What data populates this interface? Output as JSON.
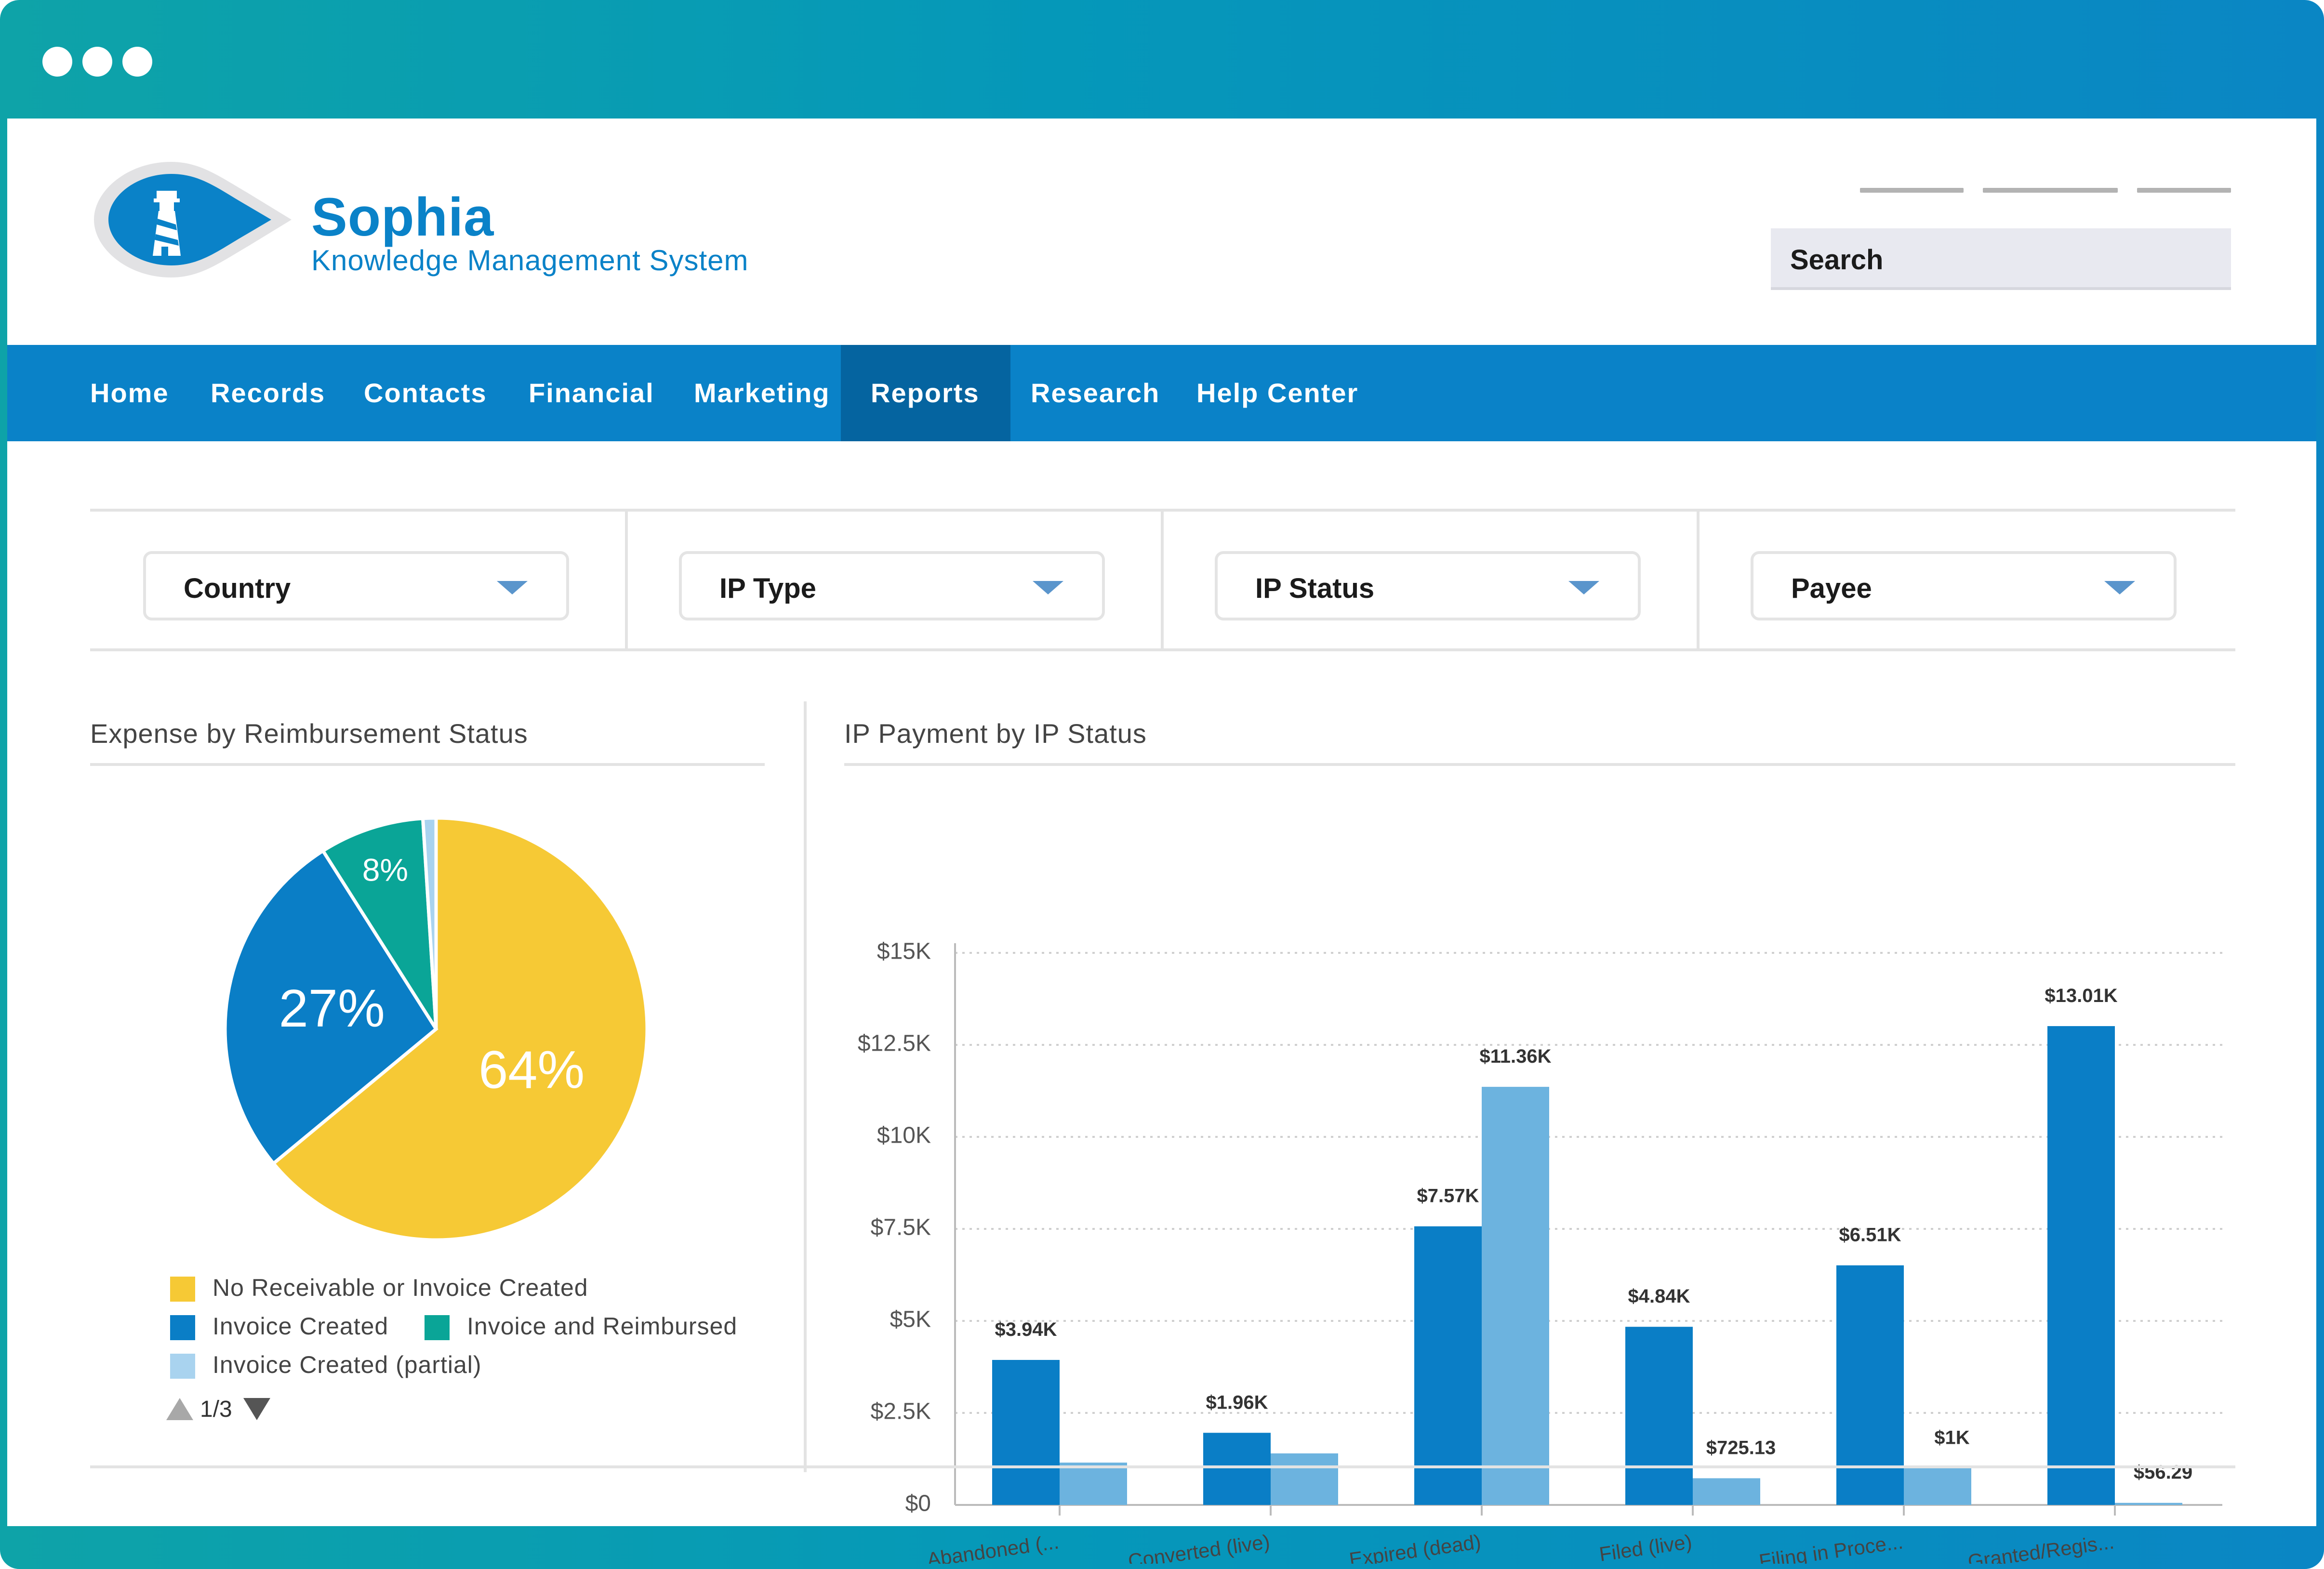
{
  "brand": {
    "title": "Sophia",
    "subtitle": "Knowledge Management System"
  },
  "header": {
    "search_label": "Search"
  },
  "nav": {
    "items": [
      {
        "label": "Home"
      },
      {
        "label": "Records"
      },
      {
        "label": "Contacts"
      },
      {
        "label": "Financial"
      },
      {
        "label": "Marketing"
      },
      {
        "label": "Reports",
        "active": true
      },
      {
        "label": "Research"
      },
      {
        "label": "Help Center"
      }
    ]
  },
  "filters": [
    {
      "label": "Country"
    },
    {
      "label": "IP Type"
    },
    {
      "label": "IP Status"
    },
    {
      "label": "Payee"
    }
  ],
  "colors": {
    "accent": "#0a82c8",
    "nav_active": "#0564a0",
    "yellow": "#f6c935",
    "blue": "#0a7ec6",
    "teal": "#0aa597",
    "light_blue": "#6cb3df",
    "pale_blue": "#a9d3ef"
  },
  "pie_panel": {
    "title": "Expense by Reimbursement Status",
    "legend": [
      {
        "label": "No Receivable or Invoice Created",
        "color": "#f6c935"
      },
      {
        "label": "Invoice Created",
        "color": "#0a7ec6"
      },
      {
        "label": "Invoice and Reimbursed",
        "color": "#0aa597"
      },
      {
        "label": "Invoice Created (partial)",
        "color": "#a9d3ef"
      }
    ],
    "pager": "1/3"
  },
  "bar_panel": {
    "title": "IP Payment by IP Status"
  },
  "chart_data": [
    {
      "type": "pie",
      "title": "Expense by Reimbursement Status",
      "slices": [
        {
          "label": "No Receivable or Invoice Created",
          "value": 64,
          "text": "64%",
          "color": "#f6c935"
        },
        {
          "label": "Invoice Created",
          "value": 27,
          "text": "27%",
          "color": "#0a7ec6"
        },
        {
          "label": "Invoice and Reimbursed",
          "value": 8,
          "text": "8%",
          "color": "#0aa597"
        },
        {
          "label": "Invoice Created (partial)",
          "value": 1,
          "text": "",
          "color": "#a9d3ef"
        }
      ]
    },
    {
      "type": "bar",
      "title": "IP Payment by IP Status",
      "categories": [
        "Abandoned (...",
        "Converted (live)",
        "Expired (dead)",
        "Filed (live)",
        "Filing in Proce...",
        "Granted/Regis..."
      ],
      "series": [
        {
          "color": "#0a7ec6",
          "values": [
            3940,
            1960,
            7570,
            4840,
            6510,
            13010
          ],
          "labels": [
            "$3.94K",
            "$1.96K",
            "$7.57K",
            "$4.84K",
            "$6.51K",
            "$13.01K"
          ]
        },
        {
          "color": "#6cb3df",
          "values": [
            1150,
            1400,
            11360,
            725.13,
            1000,
            56.29
          ],
          "labels": [
            "",
            "",
            "$11.36K",
            "$725.13",
            "$1K",
            "$56.29"
          ]
        }
      ],
      "ylim": [
        0,
        15000
      ],
      "yticks": [
        {
          "value": 0,
          "label": "$0"
        },
        {
          "value": 2500,
          "label": "$2.5K"
        },
        {
          "value": 5000,
          "label": "$5K"
        },
        {
          "value": 7500,
          "label": "$7.5K"
        },
        {
          "value": 10000,
          "label": "$10K"
        },
        {
          "value": 12500,
          "label": "$12.5K"
        },
        {
          "value": 15000,
          "label": "$15K"
        }
      ],
      "grid": true
    }
  ]
}
